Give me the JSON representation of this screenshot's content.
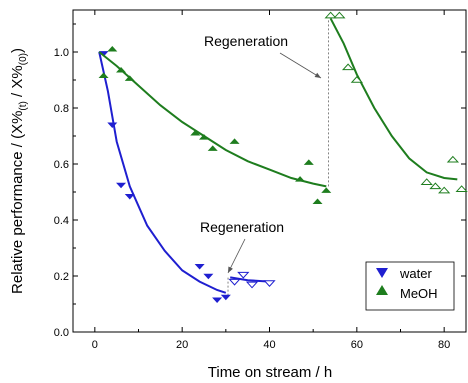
{
  "chart_data": {
    "type": "scatter",
    "xlabel": "Time on stream / h",
    "ylabel": "Relative performance / (X%",
    "ylabel_sub1": "(t)",
    "ylabel_mid": " / X%",
    "ylabel_sub2": "(0)",
    "ylabel_end": ")",
    "xlim": [
      -5,
      85
    ],
    "ylim": [
      0.0,
      1.15
    ],
    "xticks": [
      0,
      20,
      40,
      60,
      80
    ],
    "yticks": [
      0.0,
      0.2,
      0.4,
      0.6,
      0.8,
      1.0
    ],
    "ytick_labels": [
      "0.0",
      "0.2",
      "0.4",
      "0.6",
      "0.8",
      "1.0"
    ],
    "grid": false,
    "legend_position": "lower-right",
    "legend": [
      {
        "label": "water",
        "marker": "triangle-down",
        "color": "#1f1fd0"
      },
      {
        "label": "MeOH",
        "marker": "triangle-up",
        "color": "#1e7d1e"
      }
    ],
    "series": [
      {
        "name": "water",
        "color": "#1f1fd0",
        "marker": "triangle-down",
        "filled": [
          [
            2,
            0.995
          ],
          [
            4,
            0.74
          ],
          [
            6,
            0.525
          ],
          [
            8,
            0.485
          ],
          [
            24,
            0.235
          ],
          [
            26,
            0.2
          ],
          [
            28,
            0.115
          ],
          [
            30,
            0.125
          ]
        ],
        "open": [
          [
            32,
            0.18
          ],
          [
            34,
            0.205
          ],
          [
            36,
            0.17
          ],
          [
            40,
            0.175
          ]
        ],
        "fit1": [
          [
            1,
            1.0
          ],
          [
            3,
            0.86
          ],
          [
            5,
            0.68
          ],
          [
            8,
            0.52
          ],
          [
            12,
            0.38
          ],
          [
            16,
            0.29
          ],
          [
            20,
            0.22
          ],
          [
            24,
            0.18
          ],
          [
            28,
            0.15
          ],
          [
            30,
            0.14
          ]
        ],
        "fit2": [
          [
            31,
            0.195
          ],
          [
            35,
            0.185
          ],
          [
            40,
            0.18
          ]
        ]
      },
      {
        "name": "MeOH",
        "color": "#1e7d1e",
        "marker": "triangle-up",
        "filled": [
          [
            2,
            0.915
          ],
          [
            4,
            1.01
          ],
          [
            6,
            0.935
          ],
          [
            8,
            0.905
          ],
          [
            23,
            0.71
          ],
          [
            25,
            0.695
          ],
          [
            27,
            0.655
          ],
          [
            32,
            0.68
          ],
          [
            47,
            0.545
          ],
          [
            49,
            0.605
          ],
          [
            51,
            0.465
          ],
          [
            53,
            0.505
          ]
        ],
        "open": [
          [
            54,
            1.13
          ],
          [
            56,
            1.13
          ],
          [
            58,
            0.945
          ],
          [
            60,
            0.9
          ],
          [
            76,
            0.535
          ],
          [
            78,
            0.52
          ],
          [
            80,
            0.505
          ],
          [
            82,
            0.615
          ],
          [
            84,
            0.51
          ]
        ],
        "fit1": [
          [
            1,
            1.0
          ],
          [
            5,
            0.95
          ],
          [
            10,
            0.88
          ],
          [
            15,
            0.81
          ],
          [
            20,
            0.75
          ],
          [
            25,
            0.7
          ],
          [
            30,
            0.65
          ],
          [
            35,
            0.61
          ],
          [
            40,
            0.58
          ],
          [
            45,
            0.55
          ],
          [
            50,
            0.53
          ],
          [
            53,
            0.52
          ]
        ],
        "fit2": [
          [
            54,
            1.12
          ],
          [
            57,
            1.03
          ],
          [
            60,
            0.92
          ],
          [
            64,
            0.8
          ],
          [
            68,
            0.7
          ],
          [
            72,
            0.62
          ],
          [
            76,
            0.57
          ],
          [
            80,
            0.55
          ],
          [
            83,
            0.545
          ]
        ]
      }
    ],
    "regeneration_lines": [
      {
        "x": 30.5,
        "y_from": 0.13,
        "y_to": 0.195
      },
      {
        "x": 53.5,
        "y_from": 0.52,
        "y_to": 1.12
      }
    ],
    "annotations": [
      {
        "text": "Regeneration",
        "target": [
          53.5,
          0.83
        ]
      },
      {
        "text": "Regeneration",
        "target": [
          31,
          0.19
        ]
      }
    ]
  }
}
